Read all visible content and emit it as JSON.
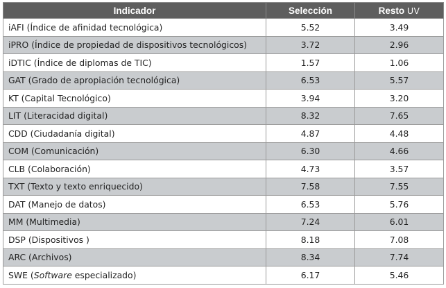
{
  "table": {
    "headers": {
      "indicador": "Indicador",
      "seleccion": "Selección",
      "resto_prefix": "Resto",
      "resto_suffix": "UV"
    },
    "rows": [
      {
        "indicador": "iAFI (Índice de afinidad tecnológica)",
        "seleccion": "5.52",
        "resto": "3.49"
      },
      {
        "indicador": "iPRO (Índice de propiedad de dispositivos tecnológicos)",
        "seleccion": "3.72",
        "resto": "2.96"
      },
      {
        "indicador": "iDTIC (Índice de diplomas de TIC)",
        "seleccion": "1.57",
        "resto": "1.06"
      },
      {
        "indicador": "GAT (Grado de apropiación tecnológica)",
        "seleccion": "6.53",
        "resto": "5.57"
      },
      {
        "indicador": "KT (Capital Tecnológico)",
        "seleccion": "3.94",
        "resto": "3.20"
      },
      {
        "indicador": "LIT (Literacidad digital)",
        "seleccion": "8.32",
        "resto": "7.65"
      },
      {
        "indicador": "CDD (Ciudadanía digital)",
        "seleccion": "4.87",
        "resto": "4.48"
      },
      {
        "indicador": "COM (Comunicación)",
        "seleccion": "6.30",
        "resto": "4.66"
      },
      {
        "indicador": "CLB (Colaboración)",
        "seleccion": "4.73",
        "resto": "3.57"
      },
      {
        "indicador": "TXT (Texto y texto enriquecido)",
        "seleccion": "7.58",
        "resto": "7.55"
      },
      {
        "indicador": "DAT (Manejo de datos)",
        "seleccion": "6.53",
        "resto": "5.76"
      },
      {
        "indicador": "MM (Multimedia)",
        "seleccion": "7.24",
        "resto": "6.01"
      },
      {
        "indicador": "DSP (Dispositivos )",
        "seleccion": "8.18",
        "resto": "7.08"
      },
      {
        "indicador": "ARC (Archivos)",
        "seleccion": "8.34",
        "resto": "7.74"
      },
      {
        "indicador_prefix": "SWE (",
        "indicador_italic": "Software",
        "indicador_suffix": " especializado)",
        "seleccion": "6.17",
        "resto": "5.46"
      }
    ]
  }
}
